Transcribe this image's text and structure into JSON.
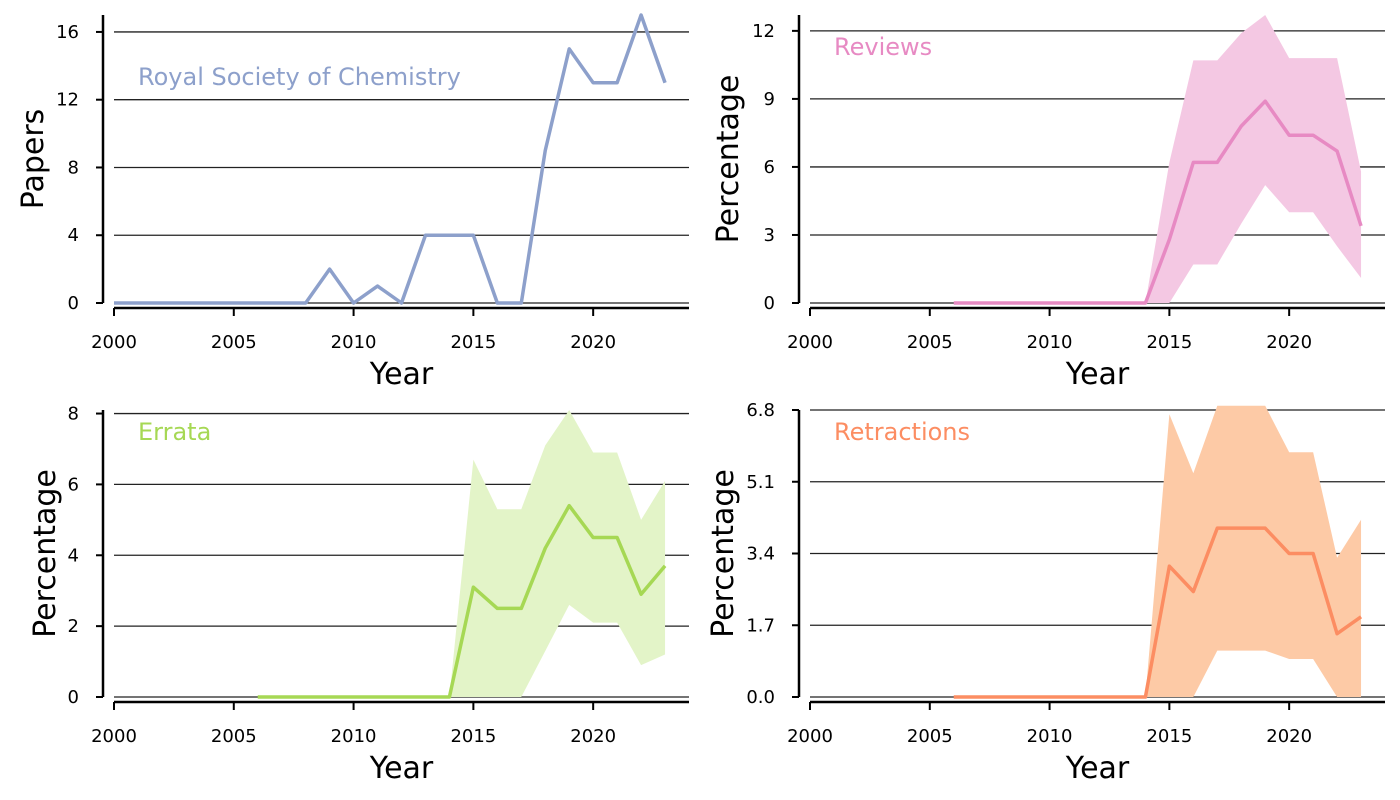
{
  "figure": {
    "panels": [
      {
        "label": "Royal Society of Chemistry",
        "label_color": "#8da0cb"
      },
      {
        "label": "Reviews",
        "label_color": "#e78ac3"
      },
      {
        "label": "Errata",
        "label_color": "#a6d854"
      },
      {
        "label": "Retractions",
        "label_color": "#fc8d62"
      }
    ]
  },
  "chart_data": [
    {
      "type": "line",
      "title": "",
      "annotation": "Royal Society of Chemistry",
      "xlabel": "Year",
      "ylabel": "Papers",
      "xlim": [
        2000,
        2024
      ],
      "ylim": [
        0,
        17
      ],
      "xticks": [
        2000,
        2005,
        2010,
        2015,
        2020
      ],
      "yticks": [
        0,
        4,
        8,
        12,
        16
      ],
      "ytick_labels": [
        "0",
        "4",
        "8",
        "12",
        "16"
      ],
      "grid": "horizontal",
      "color": "#8da0cb",
      "band_color": "#8da0cb",
      "x": [
        2000,
        2001,
        2002,
        2003,
        2004,
        2005,
        2006,
        2007,
        2008,
        2009,
        2010,
        2011,
        2012,
        2013,
        2014,
        2015,
        2016,
        2017,
        2018,
        2019,
        2020,
        2021,
        2022,
        2023
      ],
      "y": [
        0,
        0,
        0,
        0,
        0,
        0,
        0,
        0,
        0,
        2,
        0,
        1,
        0,
        4,
        4,
        4,
        0,
        0,
        9,
        15,
        13,
        13,
        17,
        13
      ]
    },
    {
      "type": "area",
      "title": "",
      "annotation": "Reviews",
      "xlabel": "Year",
      "ylabel": "Percentage",
      "xlim": [
        2000,
        2024
      ],
      "ylim": [
        0,
        12.7
      ],
      "xticks": [
        2000,
        2005,
        2010,
        2015,
        2020
      ],
      "yticks": [
        0,
        3,
        6,
        9,
        12
      ],
      "ytick_labels": [
        "0",
        "3",
        "6",
        "9",
        "12"
      ],
      "grid": "horizontal",
      "color": "#e78ac3",
      "band_color": "#f4c8e3",
      "x": [
        2006,
        2007,
        2008,
        2009,
        2010,
        2011,
        2012,
        2013,
        2014,
        2015,
        2016,
        2017,
        2018,
        2019,
        2020,
        2021,
        2022,
        2023
      ],
      "y": [
        0,
        0,
        0,
        0,
        0,
        0,
        0,
        0,
        0,
        2.8,
        6.2,
        6.2,
        7.8,
        8.9,
        7.4,
        7.4,
        6.7,
        3.4
      ],
      "lower": [
        0,
        0,
        0,
        0,
        0,
        0,
        0,
        0,
        0,
        0,
        1.7,
        1.7,
        3.5,
        5.2,
        4.0,
        4.0,
        2.5,
        1.1
      ],
      "upper": [
        0,
        0,
        0,
        0,
        0,
        0,
        0,
        0,
        0,
        6.2,
        10.7,
        10.7,
        11.9,
        12.7,
        10.8,
        10.8,
        10.8,
        5.8
      ]
    },
    {
      "type": "area",
      "title": "",
      "annotation": "Errata",
      "xlabel": "Year",
      "ylabel": "Percentage",
      "xlim": [
        2000,
        2024
      ],
      "ylim": [
        0,
        8.1
      ],
      "xticks": [
        2000,
        2005,
        2010,
        2015,
        2020
      ],
      "yticks": [
        0,
        2,
        4,
        6,
        8
      ],
      "ytick_labels": [
        "0",
        "2",
        "4",
        "6",
        "8"
      ],
      "grid": "horizontal",
      "color": "#a6d854",
      "band_color": "#e3f4c8",
      "x": [
        2006,
        2007,
        2008,
        2009,
        2010,
        2011,
        2012,
        2013,
        2014,
        2015,
        2016,
        2017,
        2018,
        2019,
        2020,
        2021,
        2022,
        2023
      ],
      "y": [
        0,
        0,
        0,
        0,
        0,
        0,
        0,
        0,
        0,
        3.1,
        2.5,
        2.5,
        4.2,
        5.4,
        4.5,
        4.5,
        2.9,
        3.7
      ],
      "lower": [
        0,
        0,
        0,
        0,
        0,
        0,
        0,
        0,
        0,
        0,
        0,
        0,
        1.3,
        2.6,
        2.1,
        2.1,
        0.9,
        1.2
      ],
      "upper": [
        0,
        0,
        0,
        0,
        0,
        0,
        0,
        0,
        0,
        6.7,
        5.3,
        5.3,
        7.1,
        8.1,
        6.9,
        6.9,
        5.0,
        6.1
      ]
    },
    {
      "type": "area",
      "title": "",
      "annotation": "Retractions",
      "xlabel": "Year",
      "ylabel": "Percentage",
      "xlim": [
        2000,
        2024
      ],
      "ylim": [
        0,
        6.8
      ],
      "xticks": [
        2000,
        2005,
        2010,
        2015,
        2020
      ],
      "yticks": [
        0,
        1.7,
        3.4,
        5.1,
        6.8
      ],
      "ytick_labels": [
        "0.0",
        "1.7",
        "3.4",
        "5.1",
        "6.8"
      ],
      "grid": "horizontal",
      "color": "#fc8d62",
      "band_color": "#fdcaa6",
      "x": [
        2006,
        2007,
        2008,
        2009,
        2010,
        2011,
        2012,
        2013,
        2014,
        2015,
        2016,
        2017,
        2018,
        2019,
        2020,
        2021,
        2022,
        2023
      ],
      "y": [
        0,
        0,
        0,
        0,
        0,
        0,
        0,
        0,
        0,
        3.1,
        2.5,
        4.0,
        4.0,
        4.0,
        3.4,
        3.4,
        1.5,
        1.9
      ],
      "lower": [
        0,
        0,
        0,
        0,
        0,
        0,
        0,
        0,
        0,
        0,
        0,
        1.1,
        1.1,
        1.1,
        0.9,
        0.9,
        0,
        0
      ],
      "upper": [
        0,
        0,
        0,
        0,
        0,
        0,
        0,
        0,
        0,
        6.7,
        5.3,
        6.9,
        6.9,
        6.9,
        5.8,
        5.8,
        3.3,
        4.2
      ]
    }
  ]
}
